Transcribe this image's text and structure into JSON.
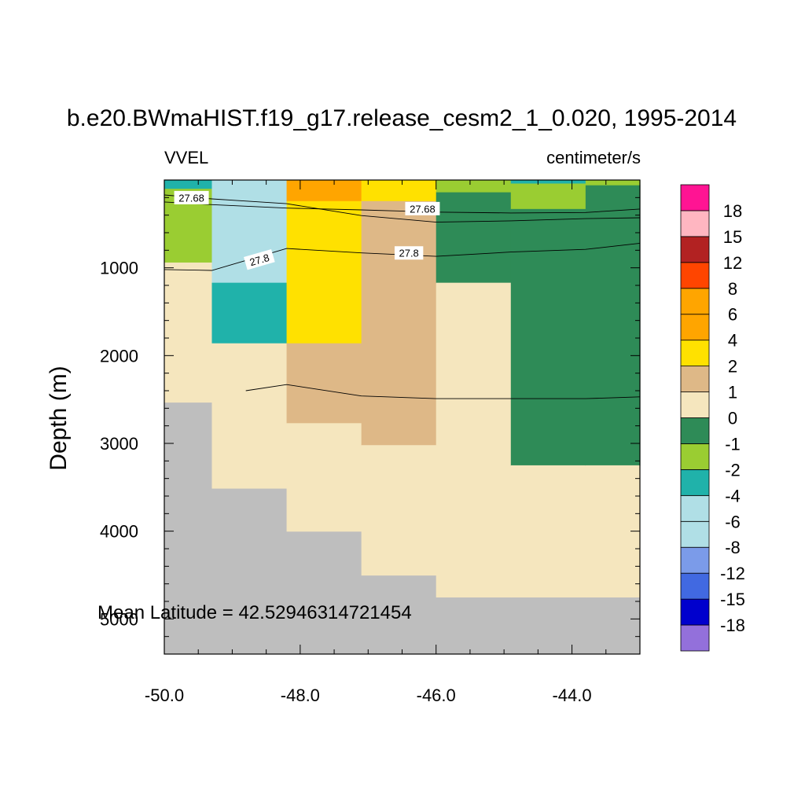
{
  "chart_data": {
    "type": "heatmap",
    "title": "b.e20.BWmaHIST.f19_g17.release_cesm2_1_0.020, 1995-2014",
    "left_string": "VVEL",
    "right_string": "centimeter/s",
    "ylabel": "Depth (m)",
    "xlabel": "",
    "xlim": [
      -50.0,
      -43.0
    ],
    "ylim": [
      5400,
      0
    ],
    "x_ticks": [
      "-50.0",
      "-48.0",
      "-46.0",
      "-44.0"
    ],
    "x_tick_values": [
      -50,
      -48,
      -46,
      -44
    ],
    "y_ticks": [
      "1000",
      "2000",
      "3000",
      "4000",
      "5000"
    ],
    "y_tick_values": [
      1000,
      2000,
      3000,
      4000,
      5000
    ],
    "land_color": "#bebebe",
    "annotation": "Mean Latitude = 42.52946314721454",
    "colorbar": {
      "colors": [
        "#9370db",
        "#0000cd",
        "#4169e1",
        "#7b9be9",
        "#b0dfe6",
        "#b0dfe6",
        "#20b2aa",
        "#9acd32",
        "#2e8b57",
        "#f5e6be",
        "#deb887",
        "#ffe100",
        "#ffa500",
        "#ffa500",
        "#ff4500",
        "#b22222",
        "#ffb6c1",
        "#ff1493"
      ],
      "labels": [
        "-18",
        "-15",
        "-12",
        "-8",
        "-6",
        "-4",
        "-2",
        "-1",
        "0",
        "1",
        "2",
        "4",
        "6",
        "8",
        "12",
        "15",
        "18"
      ]
    },
    "columns": [
      {
        "x0": -50.0,
        "x1": -49.3,
        "bottom": 2530,
        "cells": [
          {
            "d0": 0,
            "d1": 100,
            "color": "#20b2aa"
          },
          {
            "d0": 100,
            "d1": 940,
            "color": "#9acd32"
          },
          {
            "d0": 940,
            "d1": 2530,
            "color": "#f5e6be"
          }
        ]
      },
      {
        "x0": -49.3,
        "x1": -48.2,
        "bottom": 3510,
        "cells": [
          {
            "d0": 0,
            "d1": 1170,
            "color": "#b0dfe6"
          },
          {
            "d0": 1170,
            "d1": 1860,
            "color": "#20b2aa"
          },
          {
            "d0": 1860,
            "d1": 3510,
            "color": "#f5e6be"
          }
        ]
      },
      {
        "x0": -48.2,
        "x1": -47.1,
        "bottom": 4000,
        "cells": [
          {
            "d0": 0,
            "d1": 240,
            "color": "#ffa500"
          },
          {
            "d0": 240,
            "d1": 1860,
            "color": "#ffe100"
          },
          {
            "d0": 1860,
            "d1": 2770,
            "color": "#deb887"
          },
          {
            "d0": 2770,
            "d1": 4000,
            "color": "#f5e6be"
          }
        ]
      },
      {
        "x0": -47.1,
        "x1": -46.0,
        "bottom": 4500,
        "cells": [
          {
            "d0": 0,
            "d1": 240,
            "color": "#ffe100"
          },
          {
            "d0": 240,
            "d1": 3020,
            "color": "#deb887"
          },
          {
            "d0": 3020,
            "d1": 4500,
            "color": "#f5e6be"
          }
        ]
      },
      {
        "x0": -46.0,
        "x1": -44.9,
        "bottom": 4750,
        "cells": [
          {
            "d0": 0,
            "d1": 140,
            "color": "#9acd32"
          },
          {
            "d0": 140,
            "d1": 1170,
            "color": "#2e8b57"
          },
          {
            "d0": 1170,
            "d1": 4750,
            "color": "#f5e6be"
          }
        ]
      },
      {
        "x0": -44.9,
        "x1": -43.8,
        "bottom": 4750,
        "cells": [
          {
            "d0": 0,
            "d1": 40,
            "color": "#20b2aa"
          },
          {
            "d0": 40,
            "d1": 330,
            "color": "#9acd32"
          },
          {
            "d0": 330,
            "d1": 3250,
            "color": "#2e8b57"
          },
          {
            "d0": 3250,
            "d1": 4750,
            "color": "#f5e6be"
          }
        ]
      },
      {
        "x0": -43.8,
        "x1": -43.0,
        "bottom": 4750,
        "cells": [
          {
            "d0": 0,
            "d1": 60,
            "color": "#9acd32"
          },
          {
            "d0": 60,
            "d1": 3250,
            "color": "#2e8b57"
          },
          {
            "d0": 3250,
            "d1": 4750,
            "color": "#f5e6be"
          }
        ]
      }
    ],
    "contours": [
      {
        "points": [
          [
            -50.0,
            170
          ],
          [
            -49.3,
            215
          ],
          [
            -48.2,
            270
          ],
          [
            -47.1,
            405
          ],
          [
            -46.0,
            480
          ],
          [
            -44.9,
            465
          ],
          [
            -43.8,
            440
          ],
          [
            -43.0,
            430
          ]
        ]
      },
      {
        "points": [
          [
            -50.0,
            250
          ],
          [
            -49.3,
            280
          ],
          [
            -48.2,
            320
          ],
          [
            -47.1,
            340
          ],
          [
            -46.0,
            365
          ],
          [
            -44.9,
            375
          ],
          [
            -43.8,
            370
          ],
          [
            -43.0,
            330
          ]
        ]
      },
      {
        "points": [
          [
            -50.0,
            1020
          ],
          [
            -49.3,
            1030
          ],
          [
            -48.2,
            780
          ],
          [
            -47.1,
            830
          ],
          [
            -46.0,
            870
          ],
          [
            -44.9,
            820
          ],
          [
            -43.8,
            790
          ],
          [
            -43.0,
            720
          ]
        ]
      },
      {
        "points": [
          [
            -48.8,
            2400
          ],
          [
            -48.2,
            2330
          ],
          [
            -47.1,
            2460
          ],
          [
            -46.0,
            2490
          ],
          [
            -44.9,
            2490
          ],
          [
            -43.8,
            2490
          ],
          [
            -43.0,
            2470
          ]
        ]
      }
    ],
    "contour_labels": [
      {
        "text": "27.68",
        "x": -49.6,
        "y": 205,
        "angle": 0
      },
      {
        "text": "27.68",
        "x": -46.2,
        "y": 330,
        "angle": 0
      },
      {
        "text": "27.8",
        "x": -48.6,
        "y": 910,
        "angle": -16
      },
      {
        "text": "27.8",
        "x": -46.4,
        "y": 835,
        "angle": 0
      }
    ]
  }
}
